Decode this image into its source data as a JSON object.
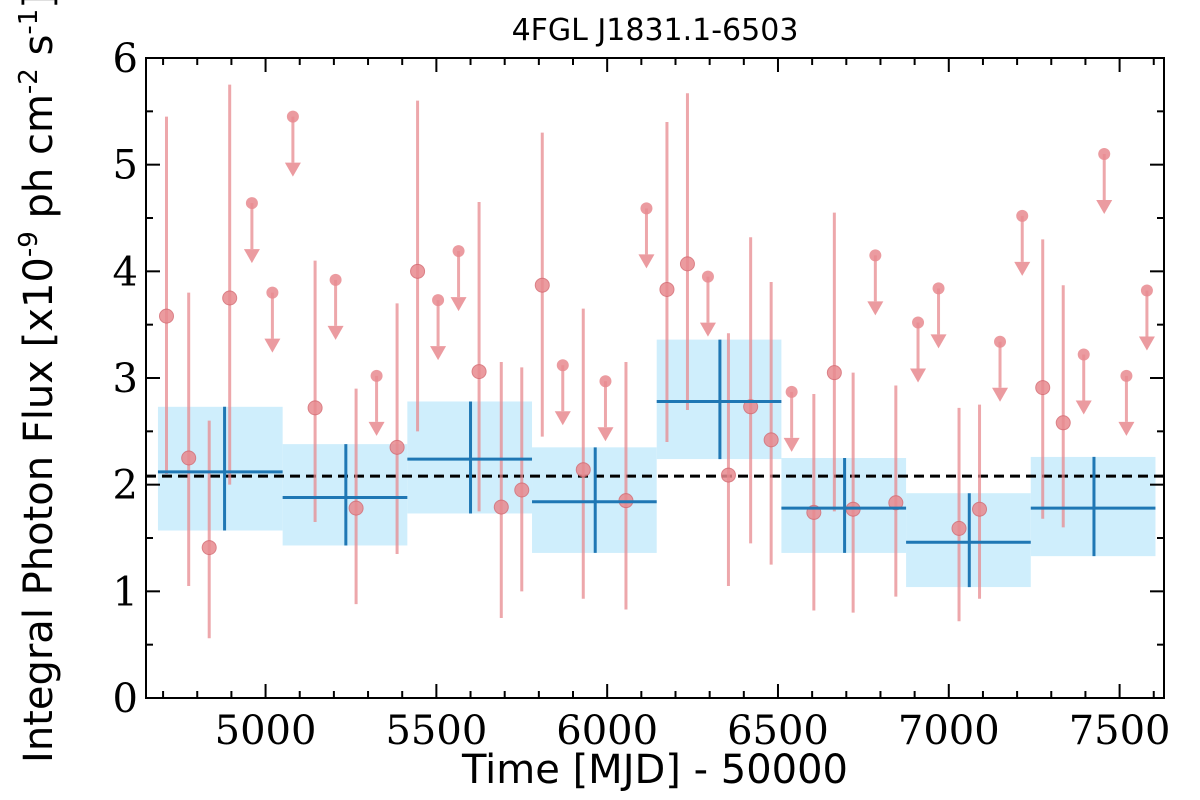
{
  "chart_data": {
    "type": "scatter",
    "title": "4FGL J1831.1-6503",
    "xlabel": "Time [MJD] - 50000",
    "ylabel": "Integral Photon Flux [x10^-9 ph cm^-2 s^-1]",
    "xlim": [
      4650,
      7630
    ],
    "ylim": [
      0,
      6
    ],
    "x_ticks": [
      "5000",
      "5500",
      "6000",
      "6500",
      "7000",
      "7500"
    ],
    "y_ticks": [
      "0",
      "1",
      "2",
      "3",
      "4",
      "5",
      "6"
    ],
    "average_flux": 2.08,
    "colors": {
      "points": "#e88a8f",
      "binned_line": "#1f77b4",
      "binned_band": "#cfeefc",
      "average_line": "#000000"
    },
    "detections": [
      {
        "x": 4710,
        "y": 3.58,
        "low": 2.1,
        "high": 5.45
      },
      {
        "x": 4775,
        "y": 2.25,
        "low": 1.05,
        "high": 3.8
      },
      {
        "x": 4835,
        "y": 1.41,
        "low": 0.56,
        "high": 2.6
      },
      {
        "x": 4895,
        "y": 3.75,
        "low": 2.0,
        "high": 5.75
      },
      {
        "x": 5145,
        "y": 2.72,
        "low": 1.65,
        "high": 4.1
      },
      {
        "x": 5265,
        "y": 1.78,
        "low": 0.88,
        "high": 2.9
      },
      {
        "x": 5385,
        "y": 2.35,
        "low": 1.35,
        "high": 3.7
      },
      {
        "x": 5445,
        "y": 4.0,
        "low": 2.5,
        "high": 5.6
      },
      {
        "x": 5625,
        "y": 3.06,
        "low": 1.75,
        "high": 4.65
      },
      {
        "x": 5690,
        "y": 1.79,
        "low": 0.75,
        "high": 3.15
      },
      {
        "x": 5750,
        "y": 1.95,
        "low": 1.0,
        "high": 3.1
      },
      {
        "x": 5810,
        "y": 3.87,
        "low": 2.45,
        "high": 5.3
      },
      {
        "x": 5930,
        "y": 2.14,
        "low": 0.93,
        "high": 3.65
      },
      {
        "x": 6055,
        "y": 1.85,
        "low": 0.83,
        "high": 3.15
      },
      {
        "x": 6175,
        "y": 3.83,
        "low": 2.4,
        "high": 5.4
      },
      {
        "x": 6235,
        "y": 4.07,
        "low": 2.7,
        "high": 5.67
      },
      {
        "x": 6355,
        "y": 2.09,
        "low": 1.05,
        "high": 3.42
      },
      {
        "x": 6420,
        "y": 2.73,
        "low": 1.45,
        "high": 4.32
      },
      {
        "x": 6480,
        "y": 2.42,
        "low": 1.25,
        "high": 3.9
      },
      {
        "x": 6605,
        "y": 1.74,
        "low": 0.82,
        "high": 2.85
      },
      {
        "x": 6665,
        "y": 3.05,
        "low": 1.75,
        "high": 4.55
      },
      {
        "x": 6720,
        "y": 1.77,
        "low": 0.8,
        "high": 3.05
      },
      {
        "x": 6845,
        "y": 1.83,
        "low": 0.95,
        "high": 2.93
      },
      {
        "x": 7030,
        "y": 1.59,
        "low": 0.72,
        "high": 2.72
      },
      {
        "x": 7090,
        "y": 1.77,
        "low": 0.93,
        "high": 2.75
      },
      {
        "x": 7275,
        "y": 2.91,
        "low": 1.68,
        "high": 4.3
      },
      {
        "x": 7335,
        "y": 2.58,
        "low": 1.6,
        "high": 3.87
      }
    ],
    "upper_limits": [
      {
        "x": 4960,
        "y": 4.64
      },
      {
        "x": 5020,
        "y": 3.8
      },
      {
        "x": 5080,
        "y": 5.45
      },
      {
        "x": 5205,
        "y": 3.92
      },
      {
        "x": 5325,
        "y": 3.02
      },
      {
        "x": 5505,
        "y": 3.73
      },
      {
        "x": 5565,
        "y": 4.19
      },
      {
        "x": 5870,
        "y": 3.12
      },
      {
        "x": 5995,
        "y": 2.97
      },
      {
        "x": 6115,
        "y": 4.59
      },
      {
        "x": 6295,
        "y": 3.95
      },
      {
        "x": 6540,
        "y": 2.87
      },
      {
        "x": 6785,
        "y": 4.15
      },
      {
        "x": 6910,
        "y": 3.52
      },
      {
        "x": 6970,
        "y": 3.84
      },
      {
        "x": 7150,
        "y": 3.34
      },
      {
        "x": 7215,
        "y": 4.52
      },
      {
        "x": 7395,
        "y": 3.22
      },
      {
        "x": 7455,
        "y": 5.1
      },
      {
        "x": 7520,
        "y": 3.02
      },
      {
        "x": 7580,
        "y": 3.82
      }
    ],
    "binned": [
      {
        "x": 4880,
        "x_start": 4685,
        "x_end": 5050,
        "y": 2.12,
        "low": 1.57,
        "high": 2.73
      },
      {
        "x": 5235,
        "x_start": 5050,
        "x_end": 5415,
        "y": 1.88,
        "low": 1.43,
        "high": 2.38
      },
      {
        "x": 5600,
        "x_start": 5415,
        "x_end": 5780,
        "y": 2.24,
        "low": 1.73,
        "high": 2.78
      },
      {
        "x": 5965,
        "x_start": 5780,
        "x_end": 6145,
        "y": 1.84,
        "low": 1.36,
        "high": 2.35
      },
      {
        "x": 6330,
        "x_start": 6145,
        "x_end": 6510,
        "y": 2.78,
        "low": 2.24,
        "high": 3.36
      },
      {
        "x": 6695,
        "x_start": 6510,
        "x_end": 6875,
        "y": 1.78,
        "low": 1.36,
        "high": 2.25
      },
      {
        "x": 7060,
        "x_start": 6875,
        "x_end": 7240,
        "y": 1.46,
        "low": 1.04,
        "high": 1.92
      },
      {
        "x": 7425,
        "x_start": 7240,
        "x_end": 7605,
        "y": 1.78,
        "low": 1.33,
        "high": 2.26
      }
    ]
  }
}
